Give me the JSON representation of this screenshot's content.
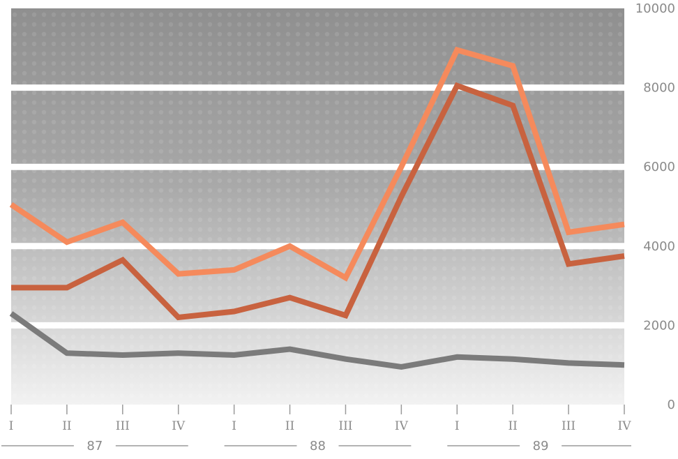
{
  "chart_data": {
    "type": "line",
    "title": "",
    "xlabel": "",
    "ylabel": "",
    "ylim": [
      0,
      10000
    ],
    "y_ticks": [
      "0",
      "2000",
      "4000",
      "6000",
      "8000",
      "10000"
    ],
    "y_tick_values": [
      0,
      2000,
      4000,
      6000,
      8000,
      10000
    ],
    "y_axis_side": "right",
    "grid": "horizontal white bands at 2000-unit intervals",
    "categories": [
      "I",
      "II",
      "III",
      "IV",
      "I",
      "II",
      "III",
      "IV",
      "I",
      "II",
      "III",
      "IV"
    ],
    "year_groups": [
      {
        "label": "87",
        "quarters": 4
      },
      {
        "label": "88",
        "quarters": 4
      },
      {
        "label": "89",
        "quarters": 4
      }
    ],
    "series": [
      {
        "color": "#f58a5c",
        "values": [
          5050,
          4100,
          4600,
          3300,
          3400,
          4000,
          3200,
          6000,
          8950,
          8550,
          4350,
          4550
        ]
      },
      {
        "color": "#c8623f",
        "values": [
          2950,
          2950,
          3650,
          2200,
          2350,
          2700,
          2250,
          5250,
          8050,
          7550,
          3550,
          3750
        ]
      },
      {
        "color": "#7b7b7b",
        "values": [
          2300,
          1300,
          1250,
          1300,
          1250,
          1400,
          1150,
          950,
          1200,
          1150,
          1050,
          1000
        ]
      }
    ]
  }
}
